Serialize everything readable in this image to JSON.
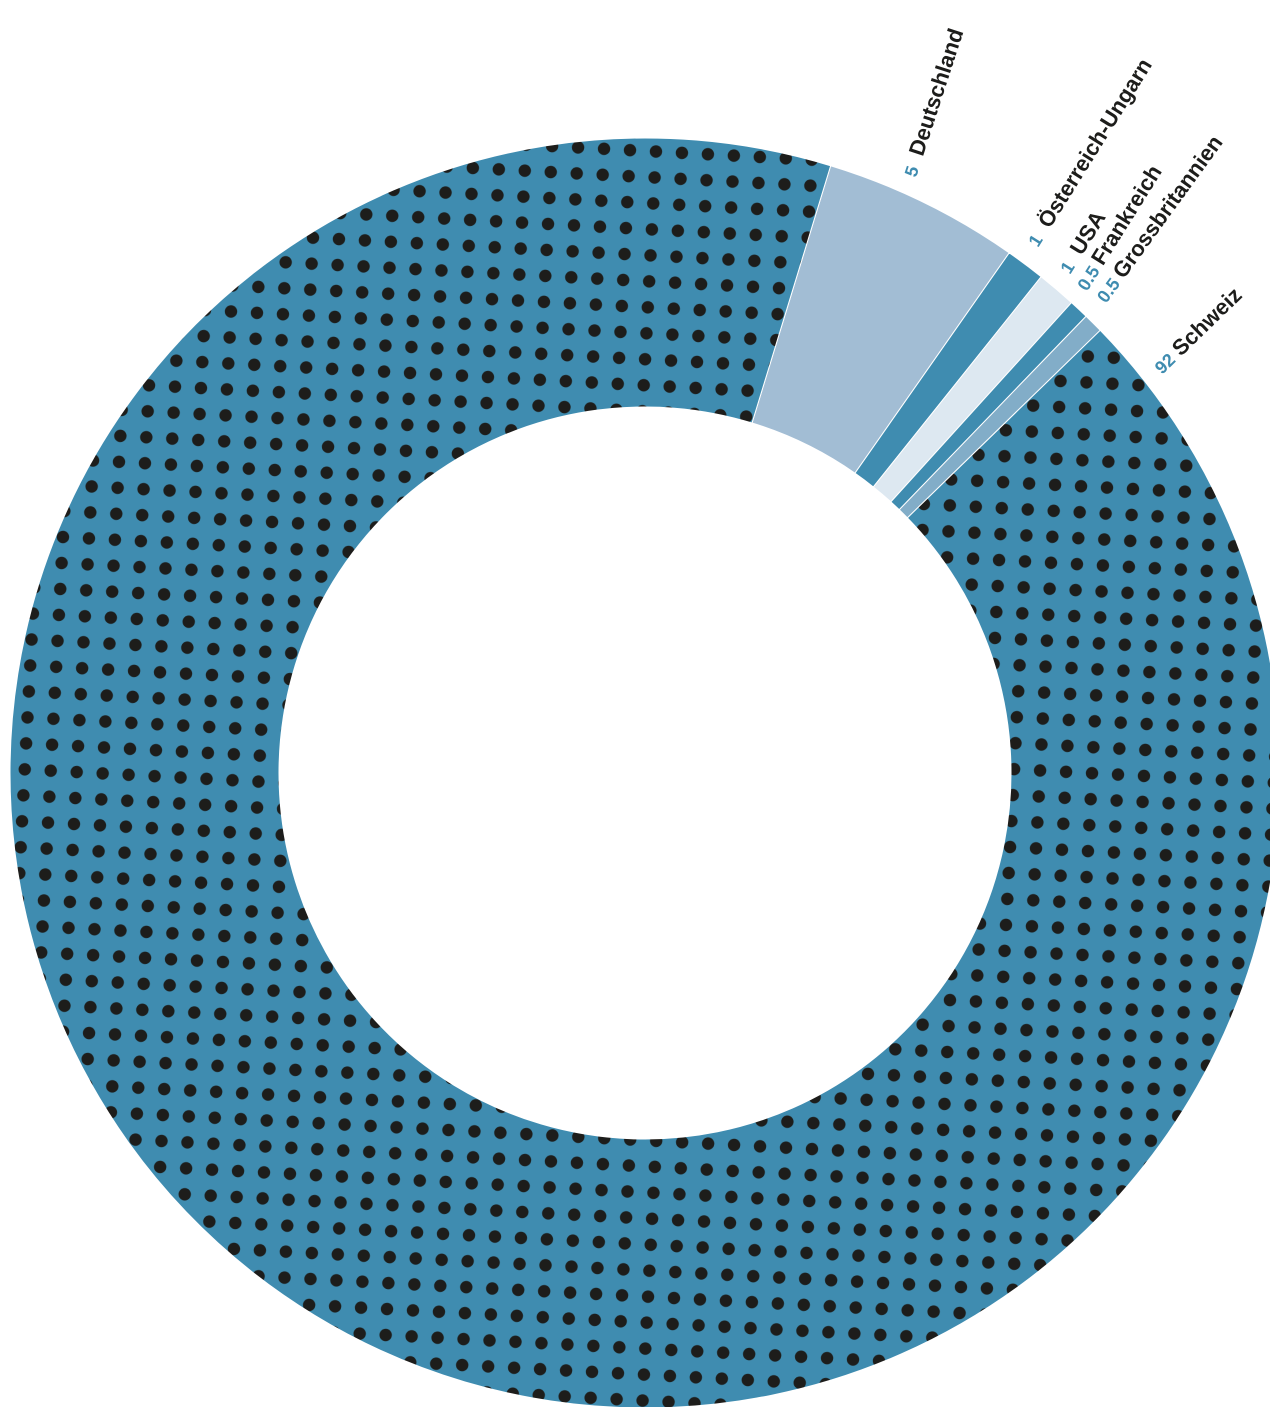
{
  "chart_data": {
    "type": "pie",
    "variant": "donut",
    "title": "",
    "slices": [
      {
        "name": "Deutschland",
        "value": 5,
        "value_label": "5",
        "color": "#a2bdd4",
        "pattern": "none"
      },
      {
        "name": "Österreich-Ungarn",
        "value": 1,
        "value_label": "1",
        "color": "#3f8cb0",
        "pattern": "none"
      },
      {
        "name": "USA",
        "value": 1,
        "value_label": "1",
        "color": "#dde8f1",
        "pattern": "none"
      },
      {
        "name": "Frankreich",
        "value": 0.5,
        "value_label": "0.5",
        "color": "#3f8cb0",
        "pattern": "none"
      },
      {
        "name": "Grossbritannien",
        "value": 0.5,
        "value_label": "0.5",
        "color": "#82adc8",
        "pattern": "none"
      },
      {
        "name": "Schweiz",
        "value": 92,
        "value_label": "92",
        "color": "#3f8cb0",
        "pattern": "dots"
      }
    ],
    "dot_color": "#1d1d1b",
    "legend": "none"
  }
}
